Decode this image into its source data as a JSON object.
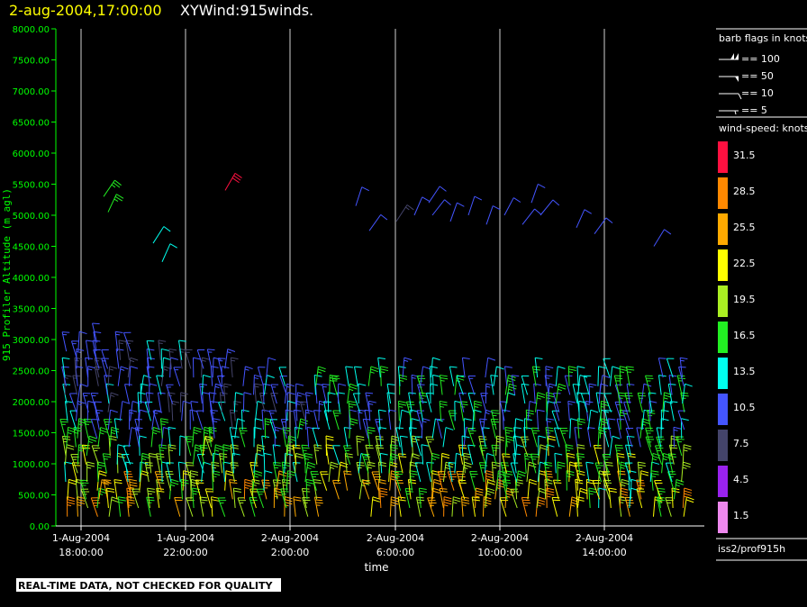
{
  "header": {
    "datetime": "2-aug-2004,17:00:00",
    "product": "XYWind:915winds."
  },
  "footer": {
    "disclaimer": "REAL-TIME DATA, NOT CHECKED FOR QUALITY",
    "source": "iss2/prof915h"
  },
  "colors": {
    "datetime": "#ffff00",
    "product": "#ffffff",
    "axis": "#00ff00",
    "background": "#000000"
  },
  "legend": {
    "barb_title": "barb flags in knots",
    "barbs": [
      "== 100",
      "== 50",
      "== 10",
      "== 5"
    ],
    "speed_title": "wind-speed: knots",
    "bins": [
      {
        "label": "31.5",
        "color": "#ff1040"
      },
      {
        "label": "28.5",
        "color": "#ff8800"
      },
      {
        "label": "25.5",
        "color": "#ffaa00"
      },
      {
        "label": "22.5",
        "color": "#ffff00"
      },
      {
        "label": "19.5",
        "color": "#aaee22"
      },
      {
        "label": "16.5",
        "color": "#22ee22"
      },
      {
        "label": "13.5",
        "color": "#00ffee"
      },
      {
        "label": "10.5",
        "color": "#4455ff"
      },
      {
        "label": "7.5",
        "color": "#44446a"
      },
      {
        "label": "4.5",
        "color": "#9922ee"
      },
      {
        "label": "1.5",
        "color": "#ee88ee"
      }
    ]
  },
  "chart_data": {
    "type": "scatter",
    "title": "",
    "xlabel": "time",
    "ylabel": "915 Profiler Altitude (m agl)",
    "ylim": [
      0,
      8000
    ],
    "y_ticks": [
      "0.00",
      "500.00",
      "1000.00",
      "1500.00",
      "2000.00",
      "2500.00",
      "3000.00",
      "3500.00",
      "4000.00",
      "4500.00",
      "5000.00",
      "5500.00",
      "6000.00",
      "6500.00",
      "7000.00",
      "7500.00",
      "8000.00"
    ],
    "x_ticks": [
      {
        "date": "1-Aug-2004",
        "time": "18:00:00"
      },
      {
        "date": "1-Aug-2004",
        "time": "22:00:00"
      },
      {
        "date": "2-Aug-2004",
        "time": "2:00:00"
      },
      {
        "date": "2-Aug-2004",
        "time": "6:00:00"
      },
      {
        "date": "2-Aug-2004",
        "time": "10:00:00"
      },
      {
        "date": "2-Aug-2004",
        "time": "14:00:00"
      }
    ],
    "xlim": [
      "1-Aug-2004 17:00",
      "2-Aug-2004 17:00"
    ],
    "grid": "vertical lines at x ticks"
  }
}
